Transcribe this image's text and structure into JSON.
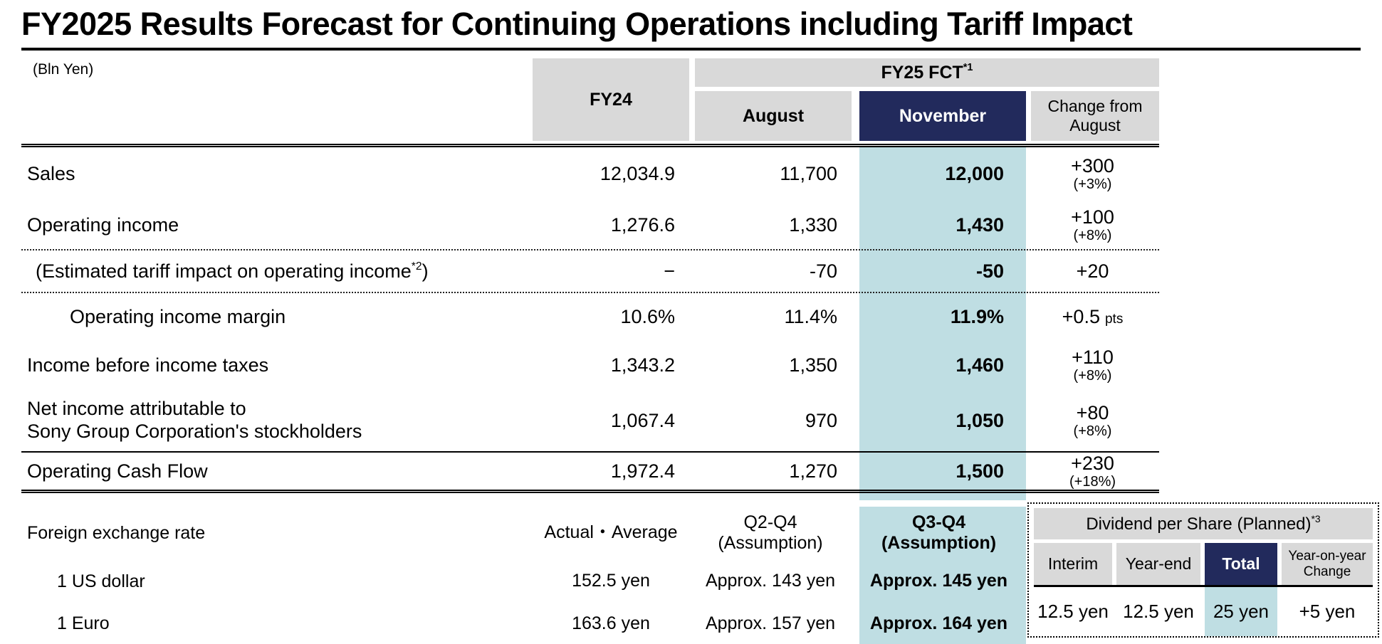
{
  "colors": {
    "navy": "#222a5c",
    "teal": "#bfdee3",
    "gray": "#d9d9d9"
  },
  "title": "FY2025 Results Forecast for Continuing Operations including Tariff Impact",
  "unit_label": "(Bln Yen)",
  "table": {
    "headers": {
      "fy24": "FY24",
      "fy25_group": "FY25 FCT",
      "fy25_group_sup": "*1",
      "august": "August",
      "november": "November",
      "change_from_august": "Change from August"
    },
    "rows": [
      {
        "label": "Sales",
        "fy24": "12,034.9",
        "august": "11,700",
        "november": "12,000",
        "change": "+300",
        "change_pct": "(+3%)"
      },
      {
        "label": "Operating income",
        "fy24": "1,276.6",
        "august": "1,330",
        "november": "1,430",
        "change": "+100",
        "change_pct": "(+8%)"
      },
      {
        "label_pre": "(Estimated tariff impact on operating income",
        "label_sup": "*2",
        "label_post": ")",
        "fy24": "−",
        "august": "-70",
        "november": "-50",
        "change": "+20"
      },
      {
        "label": "Operating income margin",
        "fy24": "10.6%",
        "august": "11.4%",
        "november": "11.9%",
        "change": "+0.5",
        "change_unit": "pts"
      },
      {
        "label": "Income before income taxes",
        "fy24": "1,343.2",
        "august": "1,350",
        "november": "1,460",
        "change": "+110",
        "change_pct": "(+8%)"
      },
      {
        "label_line1": "Net income attributable to",
        "label_line2": "Sony Group Corporation's stockholders",
        "fy24": "1,067.4",
        "august": "970",
        "november": "1,050",
        "change": "+80",
        "change_pct": "(+8%)"
      },
      {
        "label": "Operating Cash Flow",
        "fy24": "1,972.4",
        "august": "1,270",
        "november": "1,500",
        "change": "+230",
        "change_pct": "(+18%)"
      }
    ]
  },
  "fx": {
    "label": "Foreign exchange rate",
    "fy24_header": "Actual・Average",
    "august_header_line1": "Q2-Q4",
    "august_header_line2": "(Assumption)",
    "november_header_line1": "Q3-Q4",
    "november_header_line2": "(Assumption)",
    "rows": [
      {
        "label": "1 US dollar",
        "fy24": "152.5 yen",
        "august": "Approx. 143 yen",
        "november": "Approx. 145 yen"
      },
      {
        "label": "1 Euro",
        "fy24": "163.6 yen",
        "august": "Approx. 157 yen",
        "november": "Approx. 164 yen"
      }
    ]
  },
  "dividend": {
    "title": "Dividend per Share (Planned)",
    "title_sup": "*3",
    "headers": [
      "Interim",
      "Year-end",
      "Total",
      "Year-on-year Change"
    ],
    "values": [
      "12.5 yen",
      "12.5 yen",
      "25 yen",
      "+5 yen"
    ]
  }
}
